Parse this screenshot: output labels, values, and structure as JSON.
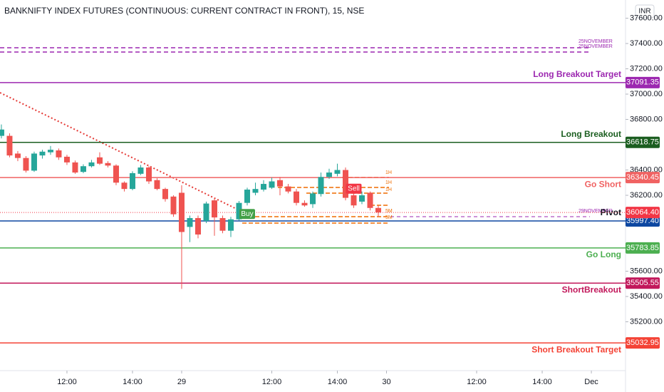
{
  "chart_data": {
    "type": "candlestick",
    "title": "BANKNIFTY INDEX FUTURES (CONTINUOUS: CURRENT CONTRACT IN FRONT), 15, NSE",
    "currency": "INR",
    "ylim": [
      34814,
      37744
    ],
    "yticks": [
      {
        "value": 37600,
        "label": "37600.00"
      },
      {
        "value": 37400,
        "label": "37400.00"
      },
      {
        "value": 37200,
        "label": "37200.00"
      },
      {
        "value": 37000,
        "label": "37000.00"
      },
      {
        "value": 36800,
        "label": "36800.00"
      },
      {
        "value": 36400,
        "label": "36400.00"
      },
      {
        "value": 36200,
        "label": "36200.00"
      },
      {
        "value": 35600,
        "label": "35600.00"
      },
      {
        "value": 35400,
        "label": "35400.00"
      },
      {
        "value": 35200,
        "label": "35200.00"
      }
    ],
    "xlim": [
      -8.17,
      68.17
    ],
    "xticks": [
      {
        "value": 0,
        "label": "12:00"
      },
      {
        "value": 8,
        "label": "14:00"
      },
      {
        "value": 14,
        "label": "29"
      },
      {
        "value": 25,
        "label": "12:00"
      },
      {
        "value": 33,
        "label": "14:00"
      },
      {
        "value": 39,
        "label": "30"
      },
      {
        "value": 50,
        "label": "12:00"
      },
      {
        "value": 58,
        "label": "14:00"
      },
      {
        "value": 64,
        "label": "Dec"
      }
    ],
    "up_color": "#26a69a",
    "down_color": "#ef5350",
    "candles": {
      "x": [
        -8,
        -7,
        -6,
        -5,
        -4,
        -3,
        -2,
        -1,
        0,
        1,
        2,
        3,
        4,
        5,
        6,
        7,
        8,
        9,
        10,
        11,
        12,
        13,
        14,
        15,
        16,
        17,
        18,
        19,
        20,
        21,
        22,
        23,
        24,
        25,
        26,
        27,
        28,
        29,
        30,
        31,
        32,
        33,
        34,
        35,
        36,
        37,
        38
      ],
      "open": [
        36670,
        36670,
        36530,
        36495,
        36395,
        36515,
        36540,
        36555,
        36505,
        36460,
        36385,
        36430,
        36500,
        36455,
        36435,
        36300,
        36250,
        36370,
        36420,
        36320,
        36250,
        36190,
        36220,
        35950,
        36020,
        35997,
        36160,
        36020,
        35920,
        36010,
        36140,
        36220,
        36245,
        36260,
        36320,
        36270,
        36230,
        36140,
        36130,
        36210,
        36345,
        36370,
        36400,
        36200,
        36150,
        36220,
        36100
      ],
      "high": [
        36760,
        36690,
        36550,
        36510,
        36545,
        36560,
        36590,
        36570,
        36520,
        36475,
        36445,
        36480,
        36540,
        36470,
        36445,
        36310,
        36390,
        36440,
        36430,
        36335,
        36260,
        36200,
        36280,
        36040,
        36040,
        36150,
        36180,
        36040,
        36030,
        36155,
        36260,
        36300,
        36320,
        36340,
        36345,
        36290,
        36250,
        36160,
        36230,
        36380,
        36410,
        36450,
        36420,
        36230,
        36230,
        36230,
        36120
      ],
      "low": [
        36650,
        36500,
        36470,
        36380,
        36385,
        36490,
        36520,
        36480,
        36440,
        36370,
        36375,
        36420,
        36440,
        36420,
        36280,
        36230,
        36240,
        36360,
        36290,
        36240,
        36150,
        36030,
        35460,
        35830,
        35860,
        35980,
        35880,
        35900,
        35870,
        36000,
        36120,
        36200,
        36230,
        36250,
        36200,
        36215,
        36120,
        36110,
        36100,
        36190,
        36330,
        36350,
        36160,
        36100,
        36130,
        36080,
        36030
      ],
      "close": [
        36720,
        36515,
        36495,
        36395,
        36530,
        36545,
        36560,
        36500,
        36460,
        36380,
        36430,
        36460,
        36450,
        36435,
        36300,
        36250,
        36375,
        36420,
        36310,
        36250,
        36170,
        36050,
        35910,
        36020,
        35890,
        36135,
        36025,
        35920,
        36010,
        36140,
        36245,
        36250,
        36290,
        36310,
        36270,
        36230,
        36140,
        36120,
        36215,
        36345,
        36380,
        36400,
        36180,
        36120,
        36200,
        36100,
        36064.4
      ]
    },
    "levels": {
      "names": [
        "Long Breakout Target",
        "Long Breakout",
        "Go Short",
        "Pivot",
        "Go Long",
        "ShortBreakout",
        "Short Breakout Target"
      ],
      "values": [
        37091.35,
        36618.75,
        36340.45,
        35997.4,
        35783.85,
        35505.55,
        35032.95
      ],
      "value_labels": [
        "37091.35",
        "36618.75",
        "36340.45",
        "35997.40",
        "35783.85",
        "35505.55",
        "35032.95"
      ],
      "colors": [
        "#9c27b0",
        "#1b5e20",
        "#f06262",
        "#0d47a1",
        "#4caf50",
        "#c2185b",
        "#f44336"
      ]
    },
    "last_price": {
      "value": 36064.4,
      "label": "36064.40",
      "color": "#f23645"
    },
    "signals": [
      {
        "label": "Buy",
        "x": 22,
        "color": "#43a047"
      },
      {
        "label": "Sell",
        "x": 35,
        "color": "#f23645"
      }
    ],
    "annotations": [
      "25NOVEMBER",
      "25NOVEMBER",
      "29NOVEMBER",
      "1H",
      "1H",
      "1H",
      "5M",
      "5M"
    ]
  }
}
